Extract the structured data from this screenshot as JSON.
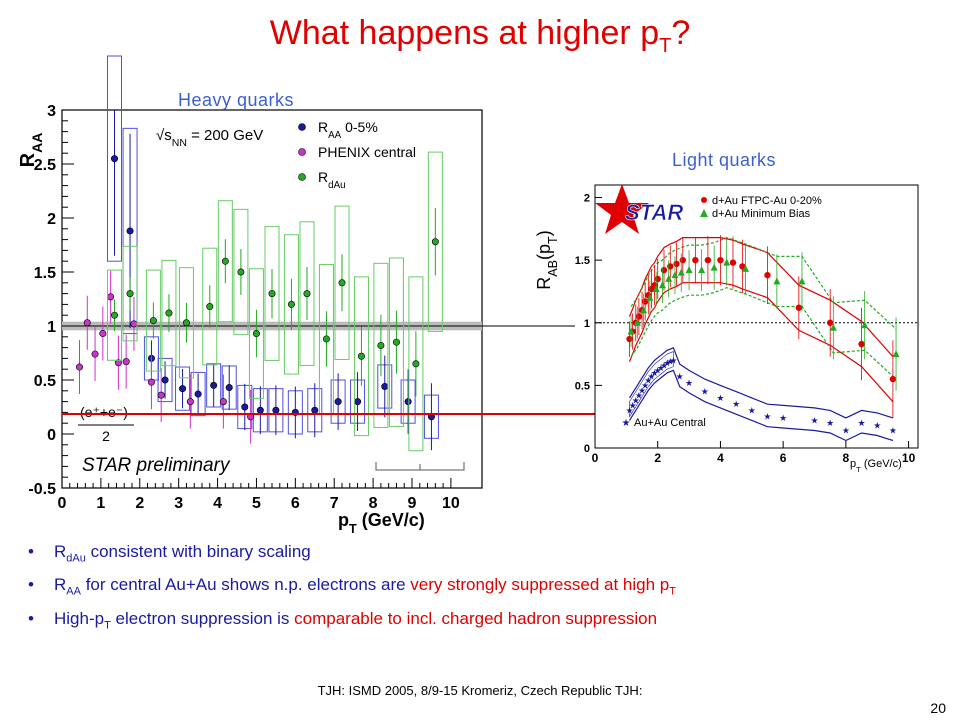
{
  "slide": {
    "title_main": "What happens at higher p",
    "title_sub": "T",
    "title_end": "?",
    "heavy_label": "Heavy quarks",
    "light_label": "Light quarks",
    "bullets": [
      {
        "pre": "R",
        "sub": "dAu",
        "text": " consistent with binary scaling",
        "red": "",
        "post": "",
        "post_sub": ""
      },
      {
        "pre": "R",
        "sub": "AA",
        "text": " for central Au+Au shows n.p. electrons are ",
        "red": "very strongly suppressed at high p",
        "post": "",
        "post_sub": "T"
      },
      {
        "pre": "High-p",
        "sub": "T",
        "text": " electron suppression is ",
        "red": "comparable to incl. charged hadron suppression",
        "post": "",
        "post_sub": ""
      }
    ],
    "footer": "TJH: ISMD 2005, 8/9-15 Kromeriz, Czech Republic TJH:",
    "page_number": "20"
  },
  "chart_data": [
    {
      "type": "scatter",
      "name_text": "heavy",
      "ylabel": "R",
      "ylabel_sub": "AA",
      "xlabel": "p",
      "xlabel_sub": "T",
      "xlabel_unit": " (GeV/c)",
      "xlim": [
        0,
        10.8
      ],
      "ylim": [
        -0.5,
        3
      ],
      "xticks": [
        0,
        1,
        2,
        3,
        4,
        5,
        6,
        7,
        8,
        9,
        10
      ],
      "yticks": [
        -0.5,
        0,
        0.5,
        1,
        1.5,
        2,
        2.5,
        3
      ],
      "annotation_energy": "√s",
      "annotation_energy_sub": "NN",
      "annotation_energy_val": " = 200 GeV",
      "annotation_preliminary": "STAR preliminary",
      "annotation_formula_num": "(e⁺+e⁻)",
      "annotation_formula_den": "2",
      "legend": [
        {
          "label": "R",
          "sub": "AA",
          "after": " 0-5%",
          "color": "#1a1aa0"
        },
        {
          "label": "PHENIX central",
          "sub": "",
          "after": "",
          "color": "#cc33cc"
        },
        {
          "label": "R",
          "sub": "dAu",
          "after": "",
          "color": "#22aa22"
        }
      ],
      "series": [
        {
          "name": "RAA 0-5%",
          "color": "#1a1aa0",
          "box_color": "#5050e0",
          "points": [
            [
              1.35,
              2.55
            ],
            [
              1.75,
              1.88
            ],
            [
              2.3,
              0.7
            ],
            [
              2.65,
              0.5
            ],
            [
              3.1,
              0.42
            ],
            [
              3.5,
              0.37
            ],
            [
              3.9,
              0.45
            ],
            [
              4.3,
              0.43
            ],
            [
              4.7,
              0.25
            ],
            [
              5.1,
              0.22
            ],
            [
              5.5,
              0.22
            ],
            [
              6.0,
              0.2
            ],
            [
              6.5,
              0.22
            ],
            [
              7.1,
              0.3
            ],
            [
              7.6,
              0.3
            ],
            [
              8.3,
              0.44
            ],
            [
              8.9,
              0.3
            ],
            [
              9.5,
              0.16
            ]
          ]
        },
        {
          "name": "PHENIX central",
          "color": "#cc33cc",
          "box_color": "",
          "points": [
            [
              0.45,
              0.62
            ],
            [
              0.65,
              1.03
            ],
            [
              0.85,
              0.74
            ],
            [
              1.05,
              0.93
            ],
            [
              1.25,
              1.27
            ],
            [
              1.45,
              0.66
            ],
            [
              1.65,
              0.67
            ],
            [
              1.85,
              1.02
            ],
            [
              2.3,
              0.48
            ],
            [
              2.55,
              0.36
            ],
            [
              3.3,
              0.3
            ],
            [
              4.15,
              0.3
            ],
            [
              4.85,
              0.16
            ]
          ]
        },
        {
          "name": "RdAu",
          "color": "#22aa22",
          "box_color": "#66cc66",
          "points": [
            [
              1.35,
              1.1
            ],
            [
              1.75,
              1.3
            ],
            [
              2.35,
              1.05
            ],
            [
              2.75,
              1.12
            ],
            [
              3.2,
              1.03
            ],
            [
              3.8,
              1.18
            ],
            [
              4.2,
              1.6
            ],
            [
              4.6,
              1.5
            ],
            [
              5.0,
              0.93
            ],
            [
              5.4,
              1.3
            ],
            [
              5.9,
              1.2
            ],
            [
              6.3,
              1.3
            ],
            [
              6.8,
              0.88
            ],
            [
              7.2,
              1.4
            ],
            [
              7.7,
              0.72
            ],
            [
              8.2,
              0.82
            ],
            [
              8.6,
              0.85
            ],
            [
              9.1,
              0.65
            ],
            [
              9.6,
              1.78
            ]
          ]
        }
      ]
    },
    {
      "type": "scatter",
      "name_text": "light",
      "ylabel": "R",
      "ylabel_sub": "AB",
      "ylabel_after": "(p",
      "ylabel_after_sub": "T",
      "ylabel_close": ")",
      "xlabel": "p",
      "xlabel_sub": "T",
      "xlabel_unit": " (GeV/c)",
      "xlim": [
        0,
        10.3
      ],
      "ylim": [
        0,
        2.1
      ],
      "xticks": [
        0,
        2,
        4,
        6,
        8,
        10
      ],
      "yticks": [
        0,
        0.5,
        1,
        1.5,
        2
      ],
      "logo": "STAR",
      "legend": [
        {
          "label": "d+Au FTPC-Au 0-20%",
          "color": "#e00000",
          "marker": "circle"
        },
        {
          "label": "d+Au Minimum Bias",
          "color": "#22aa22",
          "marker": "triangle"
        },
        {
          "label": "Au+Au Central",
          "color": "#1a1aa0",
          "marker": "star"
        }
      ],
      "series": [
        {
          "name": "d+Au FTPC-Au 0-20%",
          "color": "#e00000",
          "points": [
            [
              1.1,
              0.87
            ],
            [
              1.2,
              0.93
            ],
            [
              1.3,
              1.0
            ],
            [
              1.4,
              1.05
            ],
            [
              1.5,
              1.1
            ],
            [
              1.6,
              1.17
            ],
            [
              1.7,
              1.22
            ],
            [
              1.8,
              1.27
            ],
            [
              1.9,
              1.3
            ],
            [
              2.0,
              1.35
            ],
            [
              2.2,
              1.42
            ],
            [
              2.4,
              1.45
            ],
            [
              2.6,
              1.47
            ],
            [
              2.8,
              1.5
            ],
            [
              3.2,
              1.5
            ],
            [
              3.6,
              1.5
            ],
            [
              4.0,
              1.5
            ],
            [
              4.4,
              1.48
            ],
            [
              4.7,
              1.45
            ],
            [
              5.5,
              1.38
            ],
            [
              6.5,
              1.12
            ],
            [
              7.5,
              1.0
            ],
            [
              8.5,
              0.83
            ],
            [
              9.5,
              0.55
            ]
          ]
        },
        {
          "name": "d+Au Minimum Bias",
          "color": "#22aa22",
          "points": [
            [
              1.15,
              0.93
            ],
            [
              1.35,
              1.0
            ],
            [
              1.55,
              1.1
            ],
            [
              1.75,
              1.2
            ],
            [
              1.95,
              1.27
            ],
            [
              2.15,
              1.3
            ],
            [
              2.35,
              1.35
            ],
            [
              2.55,
              1.38
            ],
            [
              2.75,
              1.4
            ],
            [
              3.0,
              1.42
            ],
            [
              3.4,
              1.42
            ],
            [
              3.8,
              1.44
            ],
            [
              4.2,
              1.48
            ],
            [
              4.8,
              1.43
            ],
            [
              5.8,
              1.33
            ],
            [
              6.6,
              1.33
            ],
            [
              7.6,
              0.96
            ],
            [
              8.6,
              0.98
            ],
            [
              9.6,
              0.75
            ]
          ]
        },
        {
          "name": "Au+Au Central",
          "color": "#1a1aa0",
          "points": [
            [
              1.1,
              0.3
            ],
            [
              1.2,
              0.34
            ],
            [
              1.3,
              0.38
            ],
            [
              1.4,
              0.42
            ],
            [
              1.5,
              0.46
            ],
            [
              1.6,
              0.5
            ],
            [
              1.7,
              0.54
            ],
            [
              1.8,
              0.57
            ],
            [
              1.9,
              0.6
            ],
            [
              2.0,
              0.62
            ],
            [
              2.1,
              0.64
            ],
            [
              2.2,
              0.66
            ],
            [
              2.3,
              0.68
            ],
            [
              2.4,
              0.69
            ],
            [
              2.5,
              0.7
            ],
            [
              2.7,
              0.57
            ],
            [
              3.0,
              0.52
            ],
            [
              3.5,
              0.45
            ],
            [
              4.0,
              0.4
            ],
            [
              4.5,
              0.35
            ],
            [
              5.0,
              0.3
            ],
            [
              5.5,
              0.25
            ],
            [
              6.0,
              0.24
            ],
            [
              7.0,
              0.22
            ],
            [
              7.5,
              0.2
            ],
            [
              8.0,
              0.14
            ],
            [
              8.5,
              0.2
            ],
            [
              9.0,
              0.18
            ],
            [
              9.5,
              0.14
            ]
          ]
        }
      ]
    }
  ]
}
